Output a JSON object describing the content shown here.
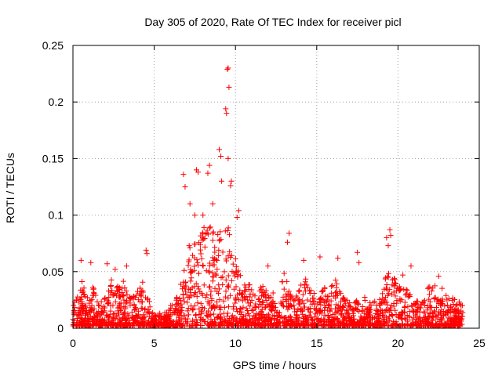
{
  "chart_data": {
    "type": "scatter",
    "title": "Day 305 of 2020, Rate Of TEC Index for receiver picl",
    "xlabel": "GPS time / hours",
    "ylabel": "ROTI / TECUs",
    "xlim": [
      0,
      25
    ],
    "ylim": [
      0,
      0.25
    ],
    "x_ticks": [
      "0",
      "5",
      "10",
      "15",
      "20",
      "25"
    ],
    "y_ticks": [
      "0",
      "0.05",
      "0.1",
      "0.15",
      "0.2",
      "0.25"
    ],
    "grid": true,
    "marker": "+",
    "color": "#ff0000",
    "series": [
      {
        "envelope_hours": [
          0,
          0.25,
          0.5,
          0.75,
          1,
          1.25,
          1.5,
          1.75,
          2,
          2.25,
          2.5,
          2.75,
          3,
          3.25,
          3.5,
          3.75,
          4,
          4.25,
          4.5,
          4.75,
          5,
          5.25,
          5.5,
          5.75,
          6,
          6.25,
          6.5,
          6.75,
          7,
          7.25,
          7.5,
          7.75,
          8,
          8.25,
          8.5,
          8.75,
          9,
          9.25,
          9.5,
          9.75,
          10,
          10.25,
          10.5,
          10.75,
          11,
          11.25,
          11.5,
          11.75,
          12,
          12.25,
          12.5,
          12.75,
          13,
          13.25,
          13.5,
          13.75,
          14,
          14.25,
          14.5,
          14.75,
          15,
          15.25,
          15.5,
          15.75,
          16,
          16.25,
          16.5,
          16.75,
          17,
          17.25,
          17.5,
          17.75,
          18,
          18.25,
          18.5,
          18.75,
          19,
          19.25,
          19.5,
          19.75,
          20,
          20.25,
          20.5,
          20.75,
          21,
          21.25,
          21.5,
          21.75,
          22,
          22.25,
          22.5,
          22.75,
          23,
          23.25,
          23.5,
          23.75,
          24
        ],
        "envelope_roti": [
          0.02,
          0.03,
          0.045,
          0.035,
          0.025,
          0.04,
          0.03,
          0.025,
          0.03,
          0.045,
          0.04,
          0.04,
          0.045,
          0.04,
          0.03,
          0.03,
          0.035,
          0.04,
          0.045,
          0.02,
          0.012,
          0.012,
          0.015,
          0.015,
          0.02,
          0.025,
          0.03,
          0.05,
          0.07,
          0.075,
          0.085,
          0.09,
          0.09,
          0.095,
          0.09,
          0.085,
          0.09,
          0.1,
          0.095,
          0.08,
          0.065,
          0.05,
          0.045,
          0.04,
          0.04,
          0.035,
          0.035,
          0.04,
          0.035,
          0.03,
          0.04,
          0.045,
          0.05,
          0.045,
          0.035,
          0.035,
          0.04,
          0.045,
          0.04,
          0.035,
          0.035,
          0.035,
          0.04,
          0.035,
          0.04,
          0.045,
          0.03,
          0.03,
          0.025,
          0.025,
          0.025,
          0.025,
          0.03,
          0.025,
          0.025,
          0.025,
          0.04,
          0.045,
          0.05,
          0.045,
          0.04,
          0.035,
          0.035,
          0.03,
          0.03,
          0.025,
          0.03,
          0.035,
          0.04,
          0.04,
          0.04,
          0.035,
          0.03,
          0.03,
          0.025,
          0.025,
          0.02
        ],
        "outliers": [
          [
            0.5,
            0.06
          ],
          [
            1.1,
            0.058
          ],
          [
            2.1,
            0.057
          ],
          [
            2.6,
            0.052
          ],
          [
            3.3,
            0.055
          ],
          [
            4.5,
            0.069
          ],
          [
            4.55,
            0.066
          ],
          [
            6.8,
            0.136
          ],
          [
            6.9,
            0.125
          ],
          [
            7.2,
            0.11
          ],
          [
            7.5,
            0.1
          ],
          [
            7.6,
            0.14
          ],
          [
            7.7,
            0.138
          ],
          [
            8.0,
            0.1
          ],
          [
            8.3,
            0.137
          ],
          [
            8.4,
            0.144
          ],
          [
            8.6,
            0.11
          ],
          [
            9.0,
            0.158
          ],
          [
            9.1,
            0.152
          ],
          [
            9.15,
            0.13
          ],
          [
            9.5,
            0.229
          ],
          [
            9.55,
            0.23
          ],
          [
            9.6,
            0.213
          ],
          [
            9.4,
            0.194
          ],
          [
            9.45,
            0.19
          ],
          [
            9.55,
            0.15
          ],
          [
            9.7,
            0.126
          ],
          [
            9.75,
            0.13
          ],
          [
            10.2,
            0.104
          ],
          [
            10.1,
            0.098
          ],
          [
            12.0,
            0.055
          ],
          [
            13.2,
            0.076
          ],
          [
            13.3,
            0.084
          ],
          [
            14.2,
            0.06
          ],
          [
            15.2,
            0.063
          ],
          [
            16.3,
            0.062
          ],
          [
            17.5,
            0.067
          ],
          [
            17.6,
            0.058
          ],
          [
            19.3,
            0.08
          ],
          [
            19.5,
            0.087
          ],
          [
            19.55,
            0.082
          ],
          [
            19.4,
            0.073
          ],
          [
            20.3,
            0.047
          ],
          [
            20.8,
            0.055
          ],
          [
            22.5,
            0.046
          ]
        ]
      }
    ]
  }
}
